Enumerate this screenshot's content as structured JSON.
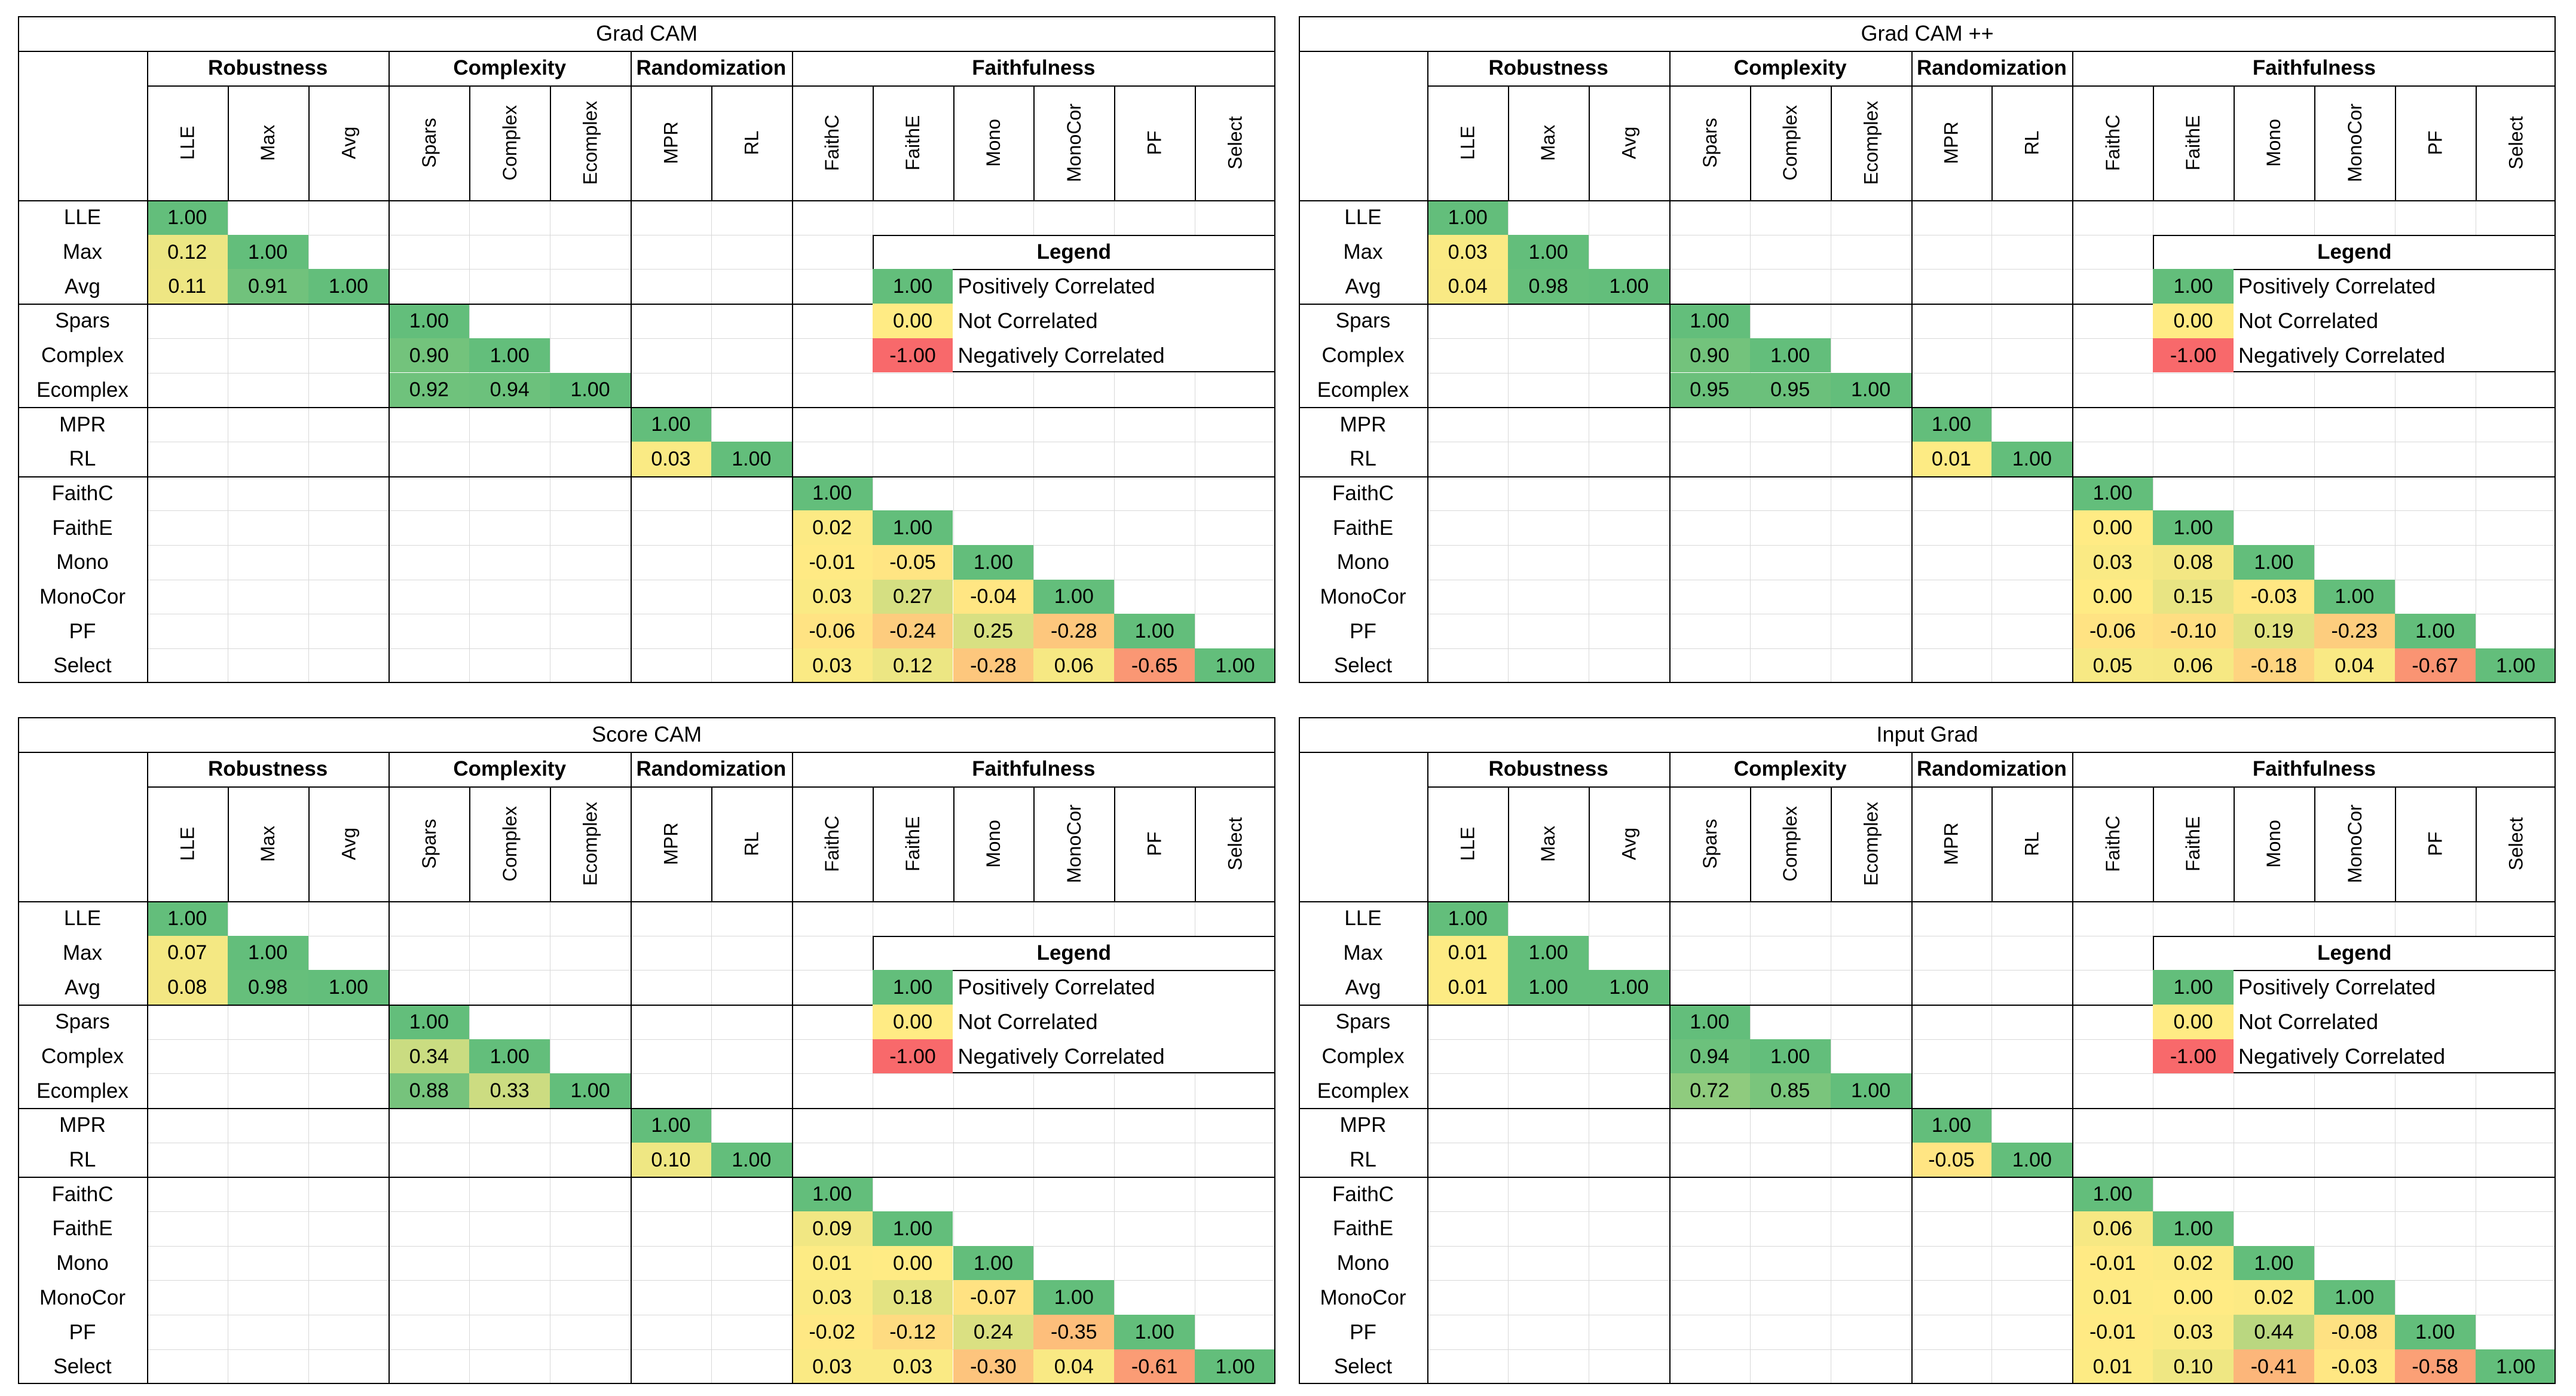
{
  "metrics": [
    "LLE",
    "Max",
    "Avg",
    "Spars",
    "Complex",
    "Ecomplex",
    "MPR",
    "RL",
    "FaithC",
    "FaithE",
    "Mono",
    "MonoCor",
    "PF",
    "Select"
  ],
  "groups": [
    {
      "name": "Robustness",
      "span": 3
    },
    {
      "name": "Complexity",
      "span": 3
    },
    {
      "name": "Randomization",
      "span": 2
    },
    {
      "name": "Faithfulness",
      "span": 6
    }
  ],
  "legend": {
    "title": "Legend",
    "items": [
      {
        "value": "1.00",
        "label": "Positively Correlated",
        "color": "#63be7b"
      },
      {
        "value": "0.00",
        "label": "Not Correlated",
        "color": "#ffeb84"
      },
      {
        "value": "-1.00",
        "label": "Negatively Correlated",
        "color": "#f8696b"
      }
    ]
  },
  "colors": {
    "positive": "#63be7b",
    "neutral": "#ffeb84",
    "negative": "#f8696b"
  },
  "chart_data": [
    {
      "type": "heatmap",
      "title": "Grad CAM",
      "blocks": [
        {
          "group": "Robustness",
          "rows": [
            [
              1.0
            ],
            [
              0.12,
              1.0
            ],
            [
              0.11,
              0.91,
              1.0
            ]
          ]
        },
        {
          "group": "Complexity",
          "rows": [
            [
              1.0
            ],
            [
              0.9,
              1.0
            ],
            [
              0.92,
              0.94,
              1.0
            ]
          ]
        },
        {
          "group": "Randomization",
          "rows": [
            [
              1.0
            ],
            [
              0.03,
              1.0
            ]
          ]
        },
        {
          "group": "Faithfulness",
          "rows": [
            [
              1.0
            ],
            [
              0.02,
              1.0
            ],
            [
              -0.01,
              -0.05,
              1.0
            ],
            [
              0.03,
              0.27,
              -0.04,
              1.0
            ],
            [
              -0.06,
              -0.24,
              0.25,
              -0.28,
              1.0
            ],
            [
              0.03,
              0.12,
              -0.28,
              0.06,
              -0.65,
              1.0
            ]
          ]
        }
      ]
    },
    {
      "type": "heatmap",
      "title": "Grad CAM ++",
      "blocks": [
        {
          "group": "Robustness",
          "rows": [
            [
              1.0
            ],
            [
              0.03,
              1.0
            ],
            [
              0.04,
              0.98,
              1.0
            ]
          ]
        },
        {
          "group": "Complexity",
          "rows": [
            [
              1.0
            ],
            [
              0.9,
              1.0
            ],
            [
              0.95,
              0.95,
              1.0
            ]
          ]
        },
        {
          "group": "Randomization",
          "rows": [
            [
              1.0
            ],
            [
              0.01,
              1.0
            ]
          ]
        },
        {
          "group": "Faithfulness",
          "rows": [
            [
              1.0
            ],
            [
              0.0,
              1.0
            ],
            [
              0.03,
              0.08,
              1.0
            ],
            [
              0.0,
              0.15,
              -0.03,
              1.0
            ],
            [
              -0.06,
              -0.1,
              0.19,
              -0.23,
              1.0
            ],
            [
              0.05,
              0.06,
              -0.18,
              0.04,
              -0.67,
              1.0
            ]
          ]
        }
      ]
    },
    {
      "type": "heatmap",
      "title": "Score CAM",
      "blocks": [
        {
          "group": "Robustness",
          "rows": [
            [
              1.0
            ],
            [
              0.07,
              1.0
            ],
            [
              0.08,
              0.98,
              1.0
            ]
          ]
        },
        {
          "group": "Complexity",
          "rows": [
            [
              1.0
            ],
            [
              0.34,
              1.0
            ],
            [
              0.88,
              0.33,
              1.0
            ]
          ]
        },
        {
          "group": "Randomization",
          "rows": [
            [
              1.0
            ],
            [
              0.1,
              1.0
            ]
          ]
        },
        {
          "group": "Faithfulness",
          "rows": [
            [
              1.0
            ],
            [
              0.09,
              1.0
            ],
            [
              0.01,
              0.0,
              1.0
            ],
            [
              0.03,
              0.18,
              -0.07,
              1.0
            ],
            [
              -0.02,
              -0.12,
              0.24,
              -0.35,
              1.0
            ],
            [
              0.03,
              0.03,
              -0.3,
              0.04,
              -0.61,
              1.0
            ]
          ]
        }
      ]
    },
    {
      "type": "heatmap",
      "title": "Input Grad",
      "blocks": [
        {
          "group": "Robustness",
          "rows": [
            [
              1.0
            ],
            [
              0.01,
              1.0
            ],
            [
              0.01,
              1.0,
              1.0
            ]
          ]
        },
        {
          "group": "Complexity",
          "rows": [
            [
              1.0
            ],
            [
              0.94,
              1.0
            ],
            [
              0.72,
              0.85,
              1.0
            ]
          ]
        },
        {
          "group": "Randomization",
          "rows": [
            [
              1.0
            ],
            [
              -0.05,
              1.0
            ]
          ]
        },
        {
          "group": "Faithfulness",
          "rows": [
            [
              1.0
            ],
            [
              0.06,
              1.0
            ],
            [
              -0.01,
              0.02,
              1.0
            ],
            [
              0.01,
              0.0,
              0.02,
              1.0
            ],
            [
              -0.01,
              0.03,
              0.44,
              -0.08,
              1.0
            ],
            [
              0.01,
              0.1,
              -0.41,
              -0.03,
              -0.58,
              1.0
            ]
          ]
        }
      ]
    }
  ]
}
